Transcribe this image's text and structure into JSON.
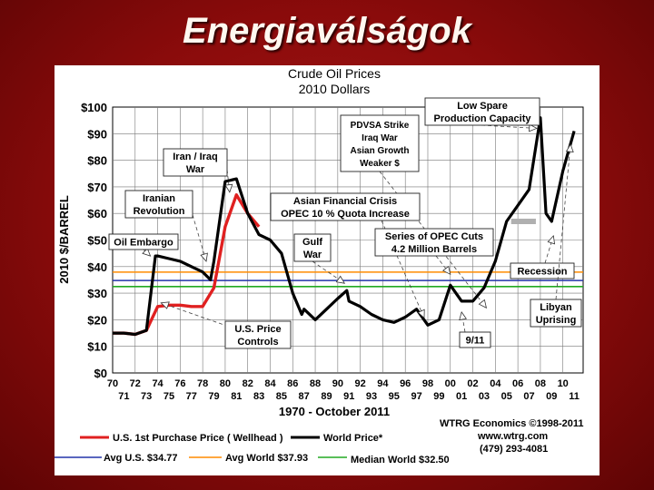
{
  "slide": {
    "title": "Energiaválságok"
  },
  "chart_data": {
    "type": "line",
    "title": "Crude Oil Prices",
    "subtitle": "2010 Dollars",
    "ylabel": "2010 $/BARREL",
    "xlabel": "1970 - October 2011",
    "ylim": [
      0,
      100
    ],
    "xlim": [
      1970,
      2011.8
    ],
    "y_ticks": [
      "$0",
      "$10",
      "$20",
      "$30",
      "$40",
      "$50",
      "$60",
      "$70",
      "$80",
      "$90",
      "$100"
    ],
    "x_ticks_top": [
      "70",
      "72",
      "74",
      "76",
      "78",
      "80",
      "82",
      "84",
      "86",
      "88",
      "90",
      "92",
      "94",
      "96",
      "98",
      "00",
      "02",
      "04",
      "06",
      "08",
      "10"
    ],
    "x_ticks_bottom": [
      "71",
      "73",
      "75",
      "77",
      "79",
      "81",
      "83",
      "85",
      "87",
      "89",
      "91",
      "93",
      "95",
      "97",
      "99",
      "01",
      "03",
      "05",
      "07",
      "09",
      "11"
    ],
    "grid": true,
    "series": [
      {
        "name": "World Price*",
        "color": "#000000",
        "x": [
          1970,
          1971,
          1972,
          1973,
          1973.8,
          1974,
          1975,
          1976,
          1977,
          1978,
          1978.7,
          1979,
          1980,
          1981,
          1982,
          1983,
          1984,
          1985,
          1986,
          1986.8,
          1987,
          1988,
          1989,
          1990,
          1990.8,
          1991,
          1992,
          1993,
          1994,
          1995,
          1996,
          1997,
          1998,
          1999,
          2000,
          2001,
          2002,
          2003,
          2004,
          2005,
          2006,
          2007,
          2008,
          2008.5,
          2009,
          2010,
          2011
        ],
        "y": [
          15,
          15,
          14.5,
          16,
          44,
          44,
          43,
          42,
          40,
          38,
          35,
          42,
          72,
          73,
          60,
          52,
          50,
          45,
          30,
          22,
          24,
          20,
          24,
          28,
          31,
          27,
          25,
          22,
          20,
          19,
          21,
          24,
          18,
          20,
          33,
          27,
          27,
          32,
          42,
          57,
          63,
          69,
          96,
          60,
          57,
          76,
          91
        ]
      },
      {
        "name": "U.S. 1st Purchase Price ( Wellhead )",
        "color": "#e02020",
        "x": [
          1970,
          1971,
          1972,
          1973,
          1974,
          1975,
          1976,
          1977,
          1978,
          1979,
          1980,
          1981,
          1982,
          1983
        ],
        "y": [
          15,
          15,
          14.5,
          16,
          25,
          25.5,
          25.5,
          25,
          25,
          32,
          55,
          67,
          60,
          55
        ]
      },
      {
        "name": "Avg U.S. $34.77",
        "color": "#2233aa",
        "constant": 34.77
      },
      {
        "name": "Avg World $37.93",
        "color": "#ff8c00",
        "constant": 37.93
      },
      {
        "name": "Median World  $32.50",
        "color": "#22aa22",
        "constant": 32.5
      }
    ],
    "annotations": [
      {
        "id": "oil-embargo",
        "text": [
          "Oil Embargo"
        ]
      },
      {
        "id": "iranian-revolution",
        "text": [
          "Iranian",
          "Revolution"
        ]
      },
      {
        "id": "iran-iraq",
        "text": [
          "Iran / Iraq",
          "War"
        ]
      },
      {
        "id": "pdvsa",
        "text": [
          "PDVSA Strike",
          "Iraq War",
          "Asian Growth",
          "Weaker $"
        ]
      },
      {
        "id": "low-spare",
        "text": [
          "Low Spare",
          "Production Capacity"
        ]
      },
      {
        "id": "asian-crisis",
        "text": [
          "Asian Financial Crisis",
          "OPEC 10 % Quota Increase"
        ]
      },
      {
        "id": "gulf-war",
        "text": [
          "Gulf",
          "War"
        ]
      },
      {
        "id": "opec-cuts",
        "text": [
          "Series of OPEC Cuts",
          "4.2 Million Barrels"
        ]
      },
      {
        "id": "recession",
        "text": [
          "Recession"
        ]
      },
      {
        "id": "libyan",
        "text": [
          "Libyan",
          "Uprising"
        ]
      },
      {
        "id": "price-controls",
        "text": [
          "U.S. Price",
          "Controls"
        ]
      },
      {
        "id": "nine-eleven",
        "text": [
          "9/11"
        ]
      }
    ],
    "credits": [
      "WTRG Economics  ©1998-2011",
      "www.wtrg.com",
      "(479) 293-4081"
    ],
    "legend_placement": "bottom"
  }
}
